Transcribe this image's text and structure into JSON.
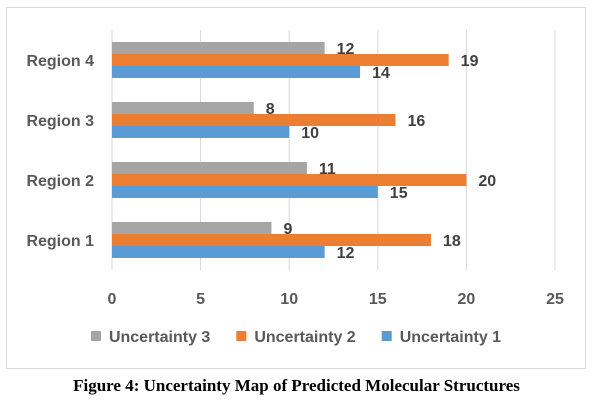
{
  "caption": "Figure 4: Uncertainty Map of Predicted Molecular Structures",
  "chart_data": {
    "type": "bar",
    "orientation": "horizontal",
    "title": "",
    "xlabel": "",
    "ylabel": "",
    "categories": [
      "Region 1",
      "Region 2",
      "Region 3",
      "Region 4"
    ],
    "series": [
      {
        "name": "Uncertainty 1",
        "color": "#5b9bd5",
        "values": [
          12,
          15,
          10,
          14
        ]
      },
      {
        "name": "Uncertainty 2",
        "color": "#ed7d31",
        "values": [
          18,
          20,
          16,
          19
        ]
      },
      {
        "name": "Uncertainty 3",
        "color": "#a5a5a5",
        "values": [
          9,
          11,
          8,
          12
        ]
      }
    ],
    "xlim": [
      0,
      25
    ],
    "xticks": [
      0,
      5,
      10,
      15,
      20,
      25
    ],
    "grid": "vertical",
    "gridline_color": "#d9d9d9",
    "data_labels": true,
    "legend_position": "bottom",
    "legend_order": [
      "Uncertainty 3",
      "Uncertainty 2",
      "Uncertainty 1"
    ]
  }
}
